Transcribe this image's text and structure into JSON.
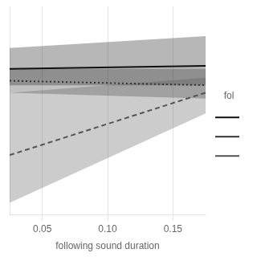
{
  "chart_data": {
    "type": "line",
    "x_label": "following sound duration",
    "legend_title": "fol",
    "x": [
      0.025,
      0.175
    ],
    "series": [
      {
        "color": "#111111",
        "line_style": "solid",
        "values": [
          0.68,
          0.7
        ],
        "ci_upper": [
          0.82,
          0.9
        ],
        "ci_lower": [
          0.57,
          0.57
        ]
      },
      {
        "color": "#333333",
        "line_style": "dotted",
        "values": [
          0.6,
          0.57
        ],
        "ci_upper": [
          0.68,
          0.68
        ],
        "ci_lower": [
          0.52,
          0.48
        ]
      },
      {
        "color": "#555555",
        "line_style": "dashed",
        "values": [
          0.1,
          0.52
        ],
        "ci_upper": [
          0.52,
          0.62
        ],
        "ci_lower": [
          -0.22,
          0.38
        ]
      }
    ],
    "xlim": [
      0.025,
      0.175
    ],
    "xticks": [
      0.05,
      {
        "value": 0.1,
        "label": "0.10"
      },
      0.15
    ],
    "ylim": [
      -0.3,
      1.1
    ],
    "grid": true,
    "legend": "right",
    "tick_labels": "x"
  }
}
